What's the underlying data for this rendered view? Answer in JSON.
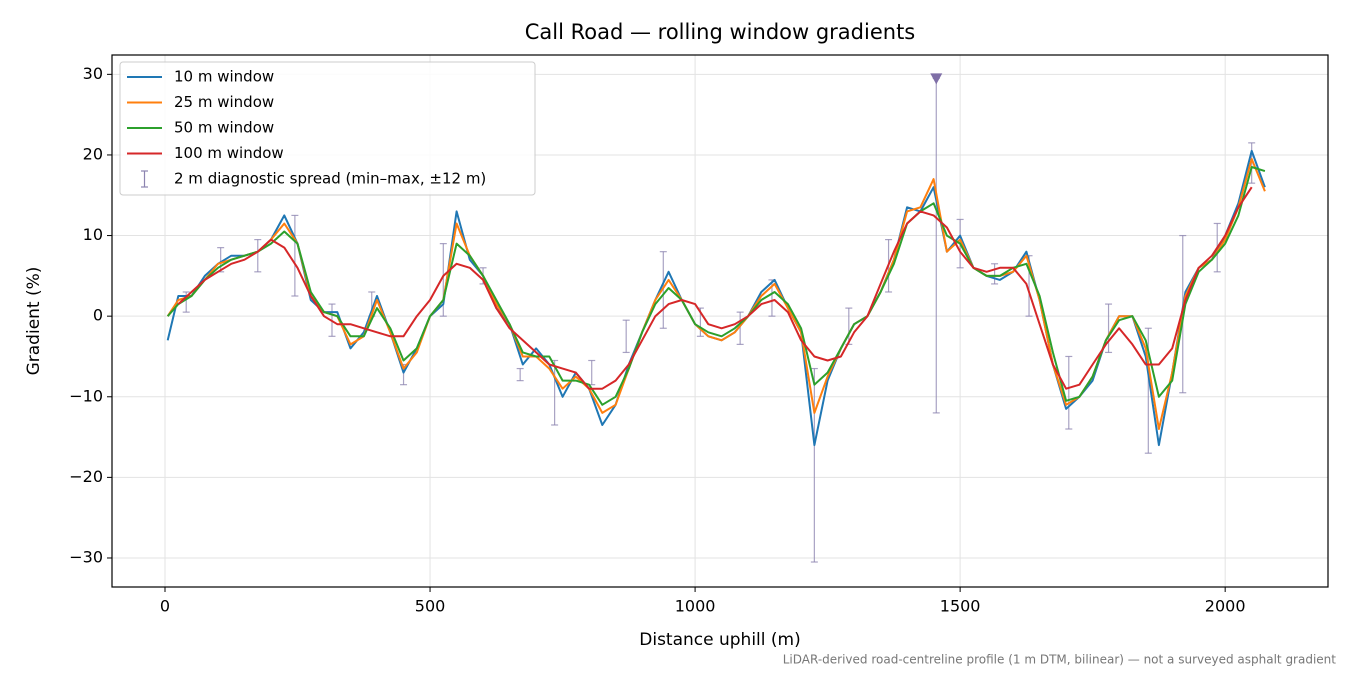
{
  "chart_data": {
    "type": "line",
    "title": "Call Road — rolling window gradients",
    "x_label": "Distance uphill (m)",
    "y_label": "Gradient (%)",
    "footnote": "LiDAR-derived road-centreline profile (1 m DTM, bilinear) — not a surveyed asphalt gradient",
    "xlim": [
      -100,
      2194
    ],
    "ylim": [
      -33.6,
      32.4
    ],
    "xticks": [
      0,
      500,
      1000,
      1500,
      2000
    ],
    "yticks": [
      {
        "value": -30,
        "label": "−30"
      },
      {
        "value": -20,
        "label": "−20"
      },
      {
        "value": -10,
        "label": "−10"
      },
      0,
      10,
      20,
      30
    ],
    "grid": true,
    "legend": "upper left",
    "x": [
      5,
      25,
      50,
      75,
      100,
      125,
      150,
      175,
      200,
      225,
      250,
      275,
      300,
      325,
      350,
      375,
      400,
      425,
      450,
      475,
      500,
      525,
      550,
      575,
      600,
      625,
      650,
      675,
      700,
      725,
      750,
      775,
      800,
      825,
      850,
      875,
      900,
      925,
      950,
      975,
      1000,
      1025,
      1050,
      1075,
      1100,
      1125,
      1150,
      1175,
      1200,
      1225,
      1250,
      1275,
      1300,
      1325,
      1350,
      1375,
      1400,
      1425,
      1450,
      1475,
      1500,
      1525,
      1550,
      1575,
      1600,
      1625,
      1650,
      1675,
      1700,
      1725,
      1750,
      1775,
      1800,
      1825,
      1850,
      1875,
      1900,
      1925,
      1950,
      1975,
      2000,
      2025,
      2050,
      2075
    ],
    "series": [
      {
        "name": "10 m window",
        "color": "#1f77b4",
        "values": [
          -3,
          2.5,
          2.5,
          5,
          6.5,
          7.5,
          7.5,
          8,
          9.5,
          12.5,
          9,
          2,
          0.5,
          0.5,
          -4,
          -2,
          2.5,
          -2,
          -7,
          -4,
          0,
          1.5,
          13,
          7,
          5,
          1,
          -1,
          -6,
          -4,
          -6,
          -10,
          -7,
          -9,
          -13.5,
          -11,
          -6,
          -2,
          2,
          5.5,
          2,
          -1,
          -2.5,
          -3,
          -2,
          0,
          3,
          4.5,
          1,
          -2,
          -16,
          -8,
          -4,
          -1,
          0,
          3,
          7,
          13.5,
          13,
          16,
          8,
          10,
          6,
          5,
          4.5,
          5.5,
          8,
          2,
          -6,
          -11.5,
          -10,
          -8,
          -3,
          0,
          0,
          -5,
          -16,
          -7,
          3,
          6,
          7,
          10,
          14,
          20.5,
          16
        ]
      },
      {
        "name": "25 m window",
        "color": "#ff7f0e",
        "values": [
          0,
          2,
          2.5,
          4.5,
          6.5,
          7,
          7.5,
          8,
          9.5,
          11.5,
          9,
          2.5,
          0.5,
          0,
          -3.5,
          -2.5,
          2,
          -2,
          -6.5,
          -4.5,
          0,
          2,
          11.5,
          7.5,
          5,
          1.5,
          -1,
          -5,
          -5,
          -6.5,
          -9,
          -7.5,
          -9,
          -12,
          -11,
          -6.5,
          -2,
          2,
          4.5,
          2,
          -1,
          -2.5,
          -3,
          -2,
          0,
          2.5,
          4,
          1,
          -2,
          -12,
          -7.5,
          -4,
          -1,
          0,
          3,
          7,
          13,
          13.5,
          17,
          8,
          9.5,
          6,
          5,
          5,
          5.5,
          7.5,
          2,
          -6,
          -11,
          -10,
          -7.5,
          -3,
          0,
          0,
          -4,
          -14,
          -7,
          2.5,
          6,
          7,
          9.5,
          13.5,
          19.5,
          15.5
        ]
      },
      {
        "name": "50 m window",
        "color": "#2ca02c",
        "values": [
          0,
          1.5,
          2.5,
          4.5,
          6,
          7,
          7.5,
          8,
          9,
          10.5,
          9,
          3,
          0.5,
          0,
          -2.5,
          -2.5,
          1,
          -1.5,
          -5.5,
          -4,
          0,
          2,
          9,
          7.5,
          5,
          2,
          -1,
          -4.5,
          -5,
          -5,
          -8,
          -8,
          -8.5,
          -11,
          -10,
          -6.5,
          -2,
          1.5,
          3.5,
          2,
          -1,
          -2,
          -2.5,
          -1.5,
          0,
          2,
          3,
          1.5,
          -1.5,
          -8.5,
          -7,
          -4,
          -1,
          0,
          3,
          6.5,
          11.5,
          13,
          14,
          10,
          9,
          6,
          5,
          5,
          6,
          6.5,
          2.5,
          -4.5,
          -10.5,
          -10,
          -7.5,
          -3,
          -0.5,
          0,
          -3,
          -10,
          -8,
          1.5,
          5.5,
          7,
          9,
          12.5,
          18.5,
          18
        ]
      },
      {
        "name": "100 m window",
        "color": "#d62728",
        "values": [
          null,
          1.5,
          3,
          4.5,
          5.5,
          6.5,
          7,
          8,
          9.5,
          8.5,
          6,
          2.5,
          0,
          -1,
          -1,
          -1.5,
          -2,
          -2.5,
          -2.5,
          0,
          2,
          5,
          6.5,
          6,
          4.5,
          1,
          -1.5,
          -3,
          -4.5,
          -6,
          -6.5,
          -7,
          -9,
          -9,
          -8,
          -6,
          -3,
          0,
          1.5,
          2,
          1.5,
          -1,
          -1.5,
          -1,
          0,
          1.5,
          2,
          0.5,
          -3,
          -5,
          -5.5,
          -5,
          -2,
          0,
          4,
          8,
          11.5,
          13,
          12.5,
          11,
          8,
          6,
          5.5,
          6,
          6,
          4,
          -1,
          -6,
          -9,
          -8.5,
          -6,
          -3.5,
          -1.5,
          -3.5,
          -6,
          -6,
          -4,
          2,
          6,
          7.5,
          10,
          13.5,
          16,
          null
        ]
      }
    ],
    "spread": {
      "name": "2 m diagnostic spread (min–max, ±12 m)",
      "color": "#8c84b0",
      "x": [
        40,
        105,
        175,
        245,
        315,
        390,
        450,
        525,
        600,
        670,
        735,
        805,
        870,
        940,
        1010,
        1085,
        1145,
        1225,
        1290,
        1365,
        1455,
        1500,
        1565,
        1630,
        1705,
        1780,
        1855,
        1920,
        1985,
        2050
      ],
      "low": [
        0.5,
        5.5,
        5.5,
        2.5,
        -2.5,
        0,
        -8.5,
        0,
        4,
        -8,
        -13.5,
        -8.5,
        -4.5,
        -1.5,
        -2.5,
        -3.5,
        0,
        -30.5,
        -3.5,
        3,
        -12,
        6,
        4,
        0,
        -14,
        -4.5,
        -17,
        -9.5,
        5.5,
        16.5
      ],
      "high": [
        3,
        8.5,
        9.5,
        12.5,
        1.5,
        3,
        -6,
        9,
        6,
        -6.5,
        -5.5,
        -5.5,
        -0.5,
        8,
        1,
        0.5,
        4.5,
        -6.5,
        1,
        9.5,
        29.5,
        12,
        6.5,
        7.5,
        -5,
        1.5,
        -1.5,
        10,
        11.5,
        21.5
      ],
      "clip_marker": {
        "x": 1455,
        "y": 29.5,
        "color": "#7f6fa7"
      }
    }
  }
}
